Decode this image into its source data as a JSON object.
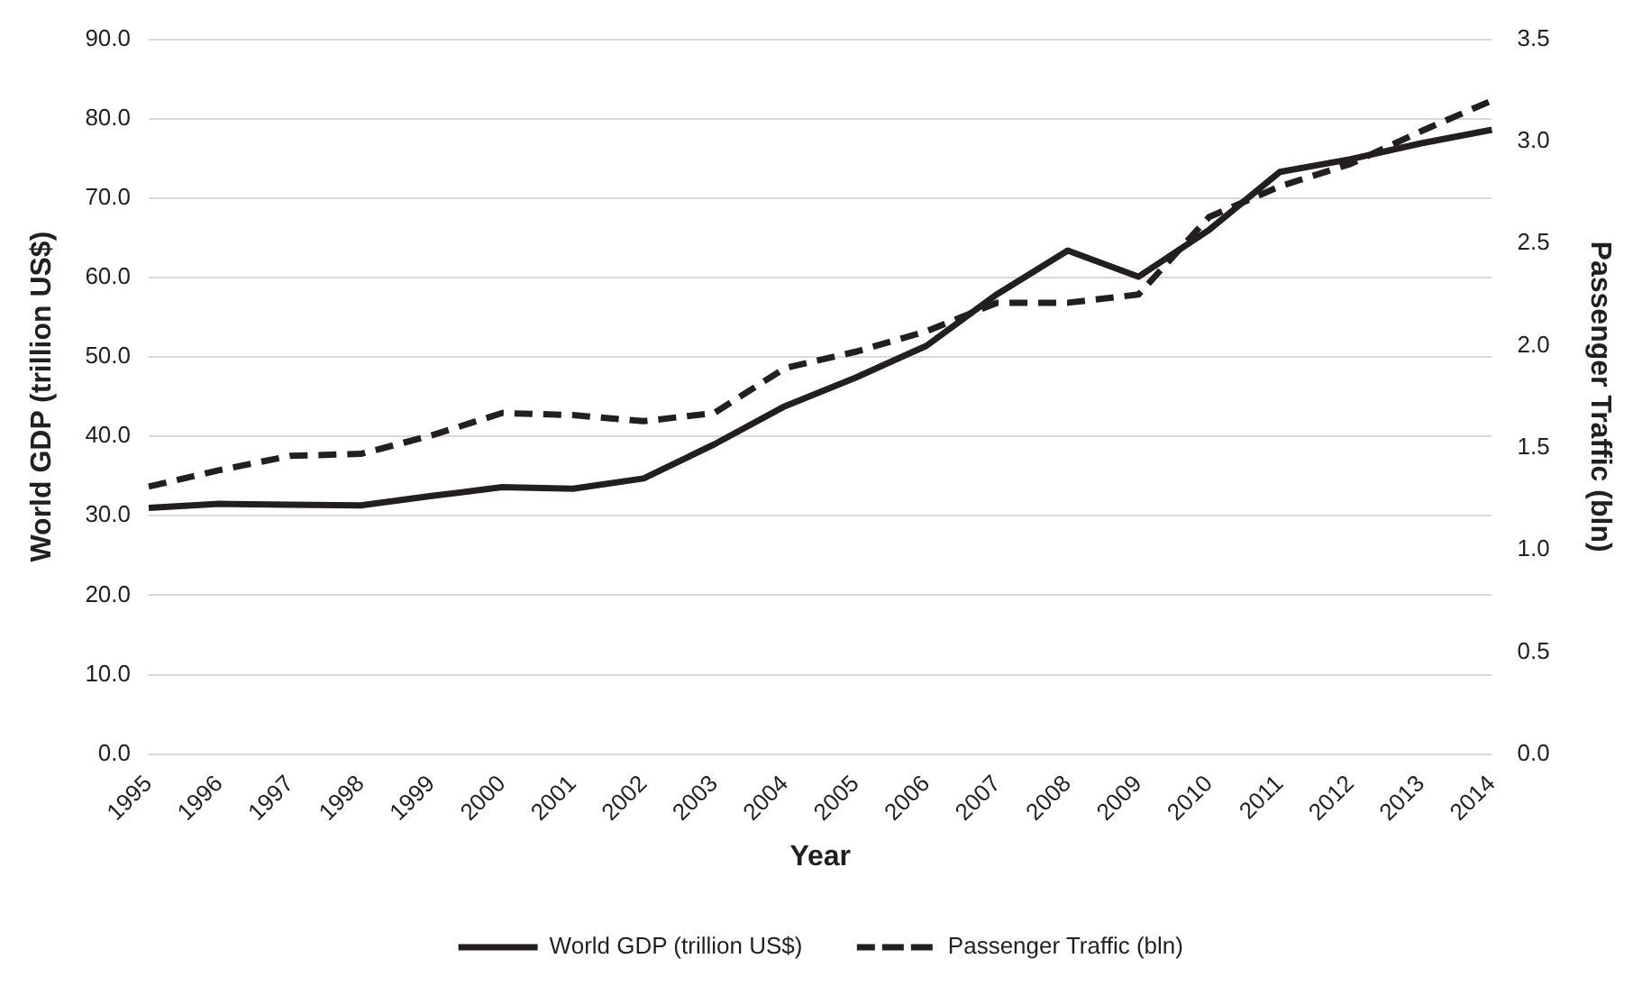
{
  "chart_data": {
    "type": "line",
    "xlabel": "Year",
    "ylabel": "World GDP (trillion US$)",
    "y2label": "Passenger Traffic (bln)",
    "categories": [
      "1995",
      "1996",
      "1997",
      "1998",
      "1999",
      "2000",
      "2001",
      "2002",
      "2003",
      "2004",
      "2005",
      "2006",
      "2007",
      "2008",
      "2009",
      "2010",
      "2011",
      "2012",
      "2013",
      "2014"
    ],
    "series": [
      {
        "name": "World GDP (trillion US$)",
        "color": "#231f20",
        "line_style": "solid",
        "values": [
          31.0,
          31.5,
          31.4,
          31.3,
          32.5,
          33.6,
          33.4,
          34.7,
          39.0,
          43.8,
          47.4,
          51.4,
          57.9,
          63.4,
          60.1,
          66.0,
          73.3,
          74.9,
          76.9,
          78.6
        ]
      },
      {
        "name": "Passenger Traffic (bln)",
        "color": "#231f20",
        "line_style": "dashed",
        "axis": "y2",
        "values": [
          1.31,
          1.39,
          1.46,
          1.47,
          1.56,
          1.67,
          1.66,
          1.63,
          1.67,
          1.89,
          1.97,
          2.07,
          2.21,
          2.21,
          2.25,
          2.63,
          2.78,
          2.89,
          3.05,
          3.2
        ]
      }
    ],
    "ylim": [
      0,
      90
    ],
    "yticks": [
      {
        "value": 0,
        "label": "0.0"
      },
      {
        "value": 10,
        "label": "10.0"
      },
      {
        "value": 20,
        "label": "20.0"
      },
      {
        "value": 30,
        "label": "30.0"
      },
      {
        "value": 40,
        "label": "40.0"
      },
      {
        "value": 50,
        "label": "50.0"
      },
      {
        "value": 60,
        "label": "60.0"
      },
      {
        "value": 70,
        "label": "70.0"
      },
      {
        "value": 80,
        "label": "80.0"
      },
      {
        "value": 90,
        "label": "90.0"
      }
    ],
    "y2lim": [
      0,
      3.5
    ],
    "y2ticks": [
      {
        "value": 0,
        "label": "0.0"
      },
      {
        "value": 0.5,
        "label": "0.5"
      },
      {
        "value": 1,
        "label": "1.0"
      },
      {
        "value": 1.5,
        "label": "1.5"
      },
      {
        "value": 2,
        "label": "2.0"
      },
      {
        "value": 2.5,
        "label": "2.5"
      },
      {
        "value": 3,
        "label": "3.0"
      },
      {
        "value": 3.5,
        "label": "3.5"
      }
    ],
    "grid": "y",
    "legend": "bottom",
    "marker": "none"
  }
}
